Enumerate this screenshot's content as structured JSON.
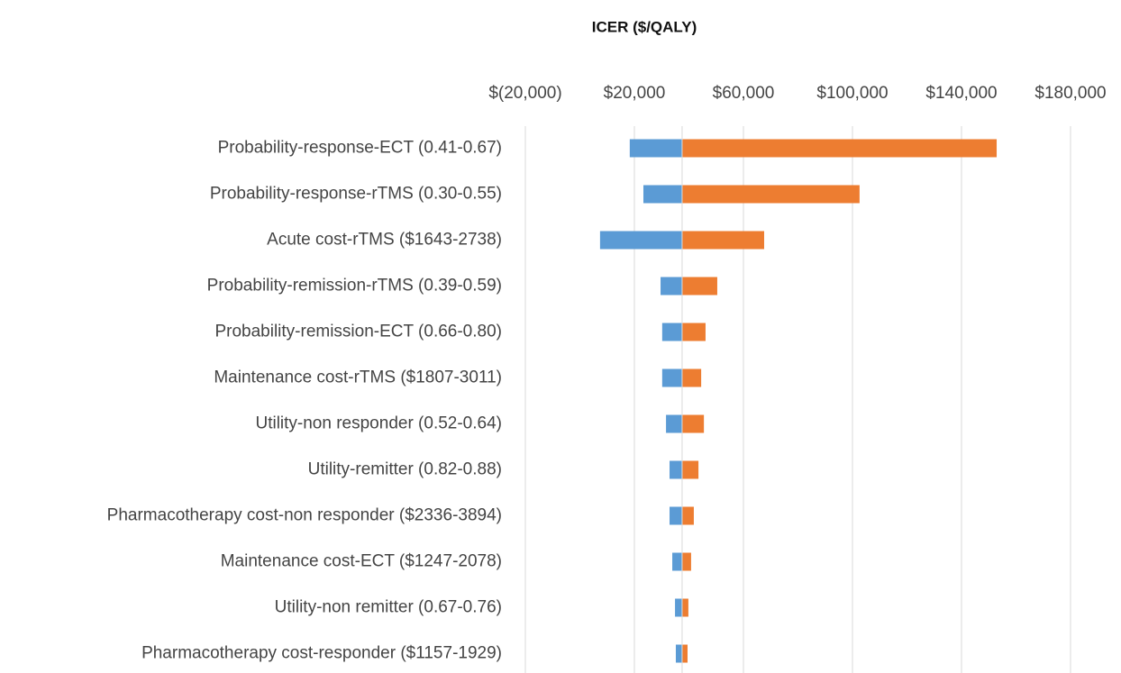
{
  "chart_data": {
    "type": "tornado",
    "title": "ICER ($/QALY)",
    "categories": [
      "Probability-response-ECT (0.41-0.67)",
      "Probability-response-rTMS (0.30-0.55)",
      "Acute cost-rTMS ($1643-2738)",
      "Probability-remission-rTMS (0.39-0.59)",
      "Probability-remission-ECT (0.66-0.80)",
      "Maintenance cost-rTMS ($1807-3011)",
      "Utility-non responder (0.52-0.64)",
      "Utility-remitter (0.82-0.88)",
      "Pharmacotherapy cost-non responder ($2336-3894)",
      "Maintenance cost-ECT ($1247-2078)",
      "Utility-non remitter (0.67-0.76)",
      "Pharmacotherapy cost-responder ($1157-1929)"
    ],
    "base_value": 37500,
    "series": [
      {
        "color": "#5b9bd5",
        "values": [
          18300,
          23300,
          7400,
          29600,
          30200,
          30200,
          31600,
          32900,
          32900,
          33900,
          34900,
          35200
        ]
      },
      {
        "color": "#ed7d31",
        "values": [
          152900,
          102600,
          67600,
          50400,
          46100,
          44500,
          45500,
          43500,
          41800,
          40800,
          39800,
          39500
        ]
      }
    ],
    "xlim": [
      -20000,
      180000
    ],
    "xticks": [
      {
        "value": -20000,
        "label": "$(20,000)"
      },
      {
        "value": 20000,
        "label": "$20,000"
      },
      {
        "value": 60000,
        "label": "$60,000"
      },
      {
        "value": 100000,
        "label": "$100,000"
      },
      {
        "value": 140000,
        "label": "$140,000"
      },
      {
        "value": 180000,
        "label": "$180,000"
      }
    ],
    "grid": true
  }
}
